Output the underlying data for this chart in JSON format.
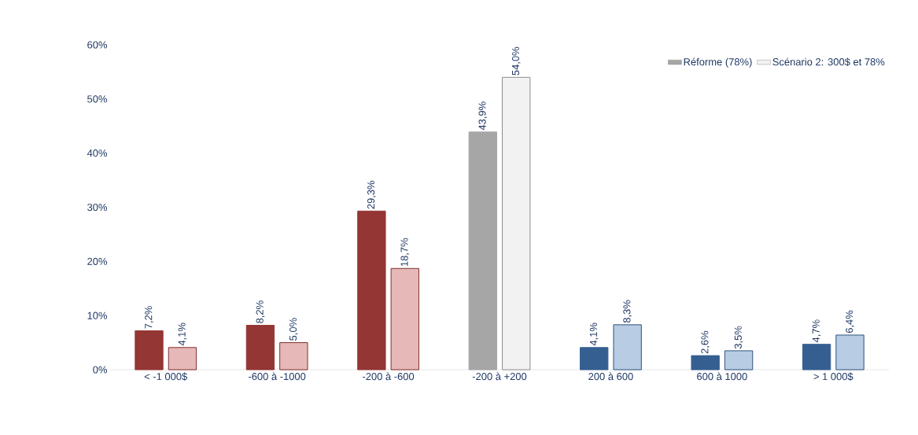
{
  "chart_data": {
    "type": "bar",
    "categories": [
      "< -1 000$",
      "-600 à -1000",
      "-200 à -600",
      "-200 à +200",
      "200 à 600",
      "600 à 1000",
      "> 1 000$"
    ],
    "series": [
      {
        "name": "Réforme (78%)",
        "color": "#a6a6a6",
        "colors": [
          "#943634",
          "#943634",
          "#943634",
          "#a6a6a6",
          "#365f91",
          "#365f91",
          "#365f91"
        ],
        "values": [
          7.2,
          8.2,
          29.3,
          43.9,
          4.1,
          2.6,
          4.7
        ],
        "value_labels": [
          "7,2%",
          "8,2%",
          "29,3%",
          "43,9%",
          "4,1%",
          "2,6%",
          "4,7%"
        ]
      },
      {
        "name": "Scénario 2: 300$ et 78%",
        "color": "#f2f2f2",
        "colors": [
          "#e6b9b8",
          "#e6b9b8",
          "#e6b9b8",
          "#f2f2f2",
          "#b8cce4",
          "#b8cce4",
          "#b8cce4"
        ],
        "values": [
          4.1,
          5.0,
          18.7,
          54.0,
          8.3,
          3.5,
          6.4
        ],
        "value_labels": [
          "4,1%",
          "5,0%",
          "18,7%",
          "54,0%",
          "8,3%",
          "3,5%",
          "6,4%"
        ]
      }
    ],
    "ylim": [
      0,
      60
    ],
    "yticks": [
      {
        "value": 0,
        "label": "0%"
      },
      {
        "value": 10,
        "label": "10%"
      },
      {
        "value": 20,
        "label": "20%"
      },
      {
        "value": 30,
        "label": "30%"
      },
      {
        "value": 40,
        "label": "40%"
      },
      {
        "value": 50,
        "label": "50%"
      },
      {
        "value": 60,
        "label": "60%"
      }
    ],
    "grid": false,
    "legend": "top right"
  }
}
